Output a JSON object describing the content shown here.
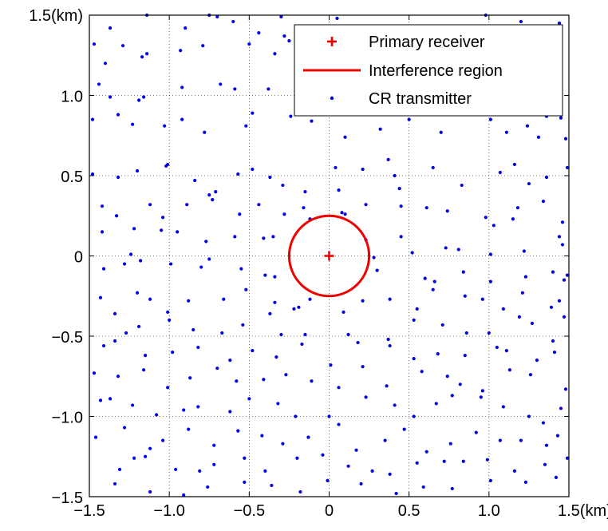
{
  "chart_data": {
    "type": "scatter",
    "xlim": [
      -1.5,
      1.5
    ],
    "ylim": [
      -1.5,
      1.5
    ],
    "grid": true,
    "legend_position": "top-right",
    "x_ticks": [
      {
        "value": -1.5,
        "label": "−1.5"
      },
      {
        "value": -1.0,
        "label": "−1.0"
      },
      {
        "value": -0.5,
        "label": "−0.5"
      },
      {
        "value": 0,
        "label": "0"
      },
      {
        "value": 0.5,
        "label": "0.5"
      },
      {
        "value": 1.0,
        "label": "1.0"
      },
      {
        "value": 1.5,
        "label": "1.5(km)"
      }
    ],
    "y_ticks": [
      {
        "value": -1.5,
        "label": "−1.5"
      },
      {
        "value": -1.0,
        "label": "−1.0"
      },
      {
        "value": -0.5,
        "label": "−0.5"
      },
      {
        "value": 0,
        "label": "0"
      },
      {
        "value": 0.5,
        "label": "0.5"
      },
      {
        "value": 1.0,
        "label": "1.0"
      },
      {
        "value": 1.5,
        "label": "1.5(km)"
      }
    ],
    "legend": {
      "items": [
        {
          "label": "Primary receiver",
          "marker": "plus",
          "color": "#ee0000"
        },
        {
          "label": "Interference region",
          "marker": "line",
          "color": "#ee0000"
        },
        {
          "label": "CR transmitter",
          "marker": "dot",
          "color": "#0000ee"
        }
      ]
    },
    "primary_receiver": {
      "x": 0,
      "y": 0,
      "color": "#ee0000"
    },
    "interference_region": {
      "center_x": 0,
      "center_y": 0,
      "radius": 0.25,
      "color": "#ee0000"
    },
    "cr_transmitters": {
      "color": "#0000ee",
      "points": [
        [
          -1.37,
          1.42
        ],
        [
          -1.14,
          1.5
        ],
        [
          -0.9,
          1.42
        ],
        [
          -0.75,
          1.5
        ],
        [
          -0.7,
          1.49
        ],
        [
          -0.6,
          1.46
        ],
        [
          -0.44,
          1.39
        ],
        [
          -0.3,
          1.49
        ],
        [
          -0.28,
          1.37
        ],
        [
          -0.25,
          1.34
        ],
        [
          0.05,
          1.48
        ],
        [
          0.3,
          1.37
        ],
        [
          0.49,
          1.43
        ],
        [
          0.61,
          1.36
        ],
        [
          0.82,
          1.37
        ],
        [
          0.98,
          1.5
        ],
        [
          1.2,
          1.46
        ],
        [
          1.44,
          1.45
        ],
        [
          -1.47,
          1.32
        ],
        [
          -1.4,
          1.2
        ],
        [
          -1.29,
          1.31
        ],
        [
          -1.14,
          1.26
        ],
        [
          -1.17,
          1.24
        ],
        [
          -0.93,
          1.28
        ],
        [
          -0.79,
          1.31
        ],
        [
          -0.5,
          1.32
        ],
        [
          -0.34,
          1.26
        ],
        [
          0.26,
          1.23
        ],
        [
          0.46,
          1.2
        ],
        [
          0.78,
          1.22
        ],
        [
          1.05,
          1.32
        ],
        [
          1.12,
          1.27
        ],
        [
          1.25,
          1.19
        ],
        [
          -1.44,
          1.07
        ],
        [
          -1.37,
          0.99
        ],
        [
          -1.19,
          0.97
        ],
        [
          -1.16,
          0.99
        ],
        [
          -0.92,
          1.05
        ],
        [
          -0.68,
          1.07
        ],
        [
          -0.59,
          1.04
        ],
        [
          -0.38,
          1.04
        ],
        [
          -0.06,
          0.96
        ],
        [
          0.39,
          1.03
        ],
        [
          0.95,
          1.09
        ],
        [
          1.25,
          1.07
        ],
        [
          1.4,
          1.05
        ],
        [
          1.42,
          1.12
        ],
        [
          -1.48,
          0.85
        ],
        [
          -1.32,
          0.88
        ],
        [
          -1.23,
          0.82
        ],
        [
          -1.03,
          0.81
        ],
        [
          -0.92,
          0.85
        ],
        [
          -0.78,
          0.77
        ],
        [
          -0.52,
          0.81
        ],
        [
          -0.48,
          0.89
        ],
        [
          -0.24,
          0.87
        ],
        [
          -0.11,
          0.84
        ],
        [
          0.1,
          0.74
        ],
        [
          0.32,
          0.79
        ],
        [
          0.5,
          0.85
        ],
        [
          0.7,
          0.77
        ],
        [
          0.87,
          0.93
        ],
        [
          1.01,
          0.85
        ],
        [
          1.11,
          0.77
        ],
        [
          1.24,
          0.81
        ],
        [
          1.31,
          0.74
        ],
        [
          1.36,
          0.87
        ],
        [
          1.45,
          0.86
        ],
        [
          1.48,
          0.73
        ],
        [
          -1.48,
          0.51
        ],
        [
          -1.32,
          0.49
        ],
        [
          -1.2,
          0.53
        ],
        [
          -1.02,
          0.56
        ],
        [
          -1.01,
          0.57
        ],
        [
          -0.84,
          0.47
        ],
        [
          -0.71,
          0.4
        ],
        [
          -0.57,
          0.51
        ],
        [
          -0.48,
          0.54
        ],
        [
          -0.37,
          0.49
        ],
        [
          -0.29,
          0.44
        ],
        [
          -0.15,
          0.4
        ],
        [
          0.04,
          0.55
        ],
        [
          0.06,
          0.41
        ],
        [
          0.21,
          0.54
        ],
        [
          0.37,
          0.6
        ],
        [
          0.41,
          0.5
        ],
        [
          0.44,
          0.42
        ],
        [
          0.65,
          0.55
        ],
        [
          0.83,
          0.44
        ],
        [
          1.07,
          0.52
        ],
        [
          1.16,
          0.57
        ],
        [
          1.25,
          0.45
        ],
        [
          1.36,
          0.49
        ],
        [
          1.49,
          0.55
        ],
        [
          -1.42,
          0.31
        ],
        [
          -1.33,
          0.25
        ],
        [
          -1.12,
          0.32
        ],
        [
          -1.04,
          0.24
        ],
        [
          -0.89,
          0.32
        ],
        [
          -0.75,
          0.38
        ],
        [
          -0.73,
          0.35
        ],
        [
          -0.56,
          0.26
        ],
        [
          -0.44,
          0.32
        ],
        [
          -0.28,
          0.26
        ],
        [
          -0.16,
          0.3
        ],
        [
          -0.12,
          0.23
        ],
        [
          0.08,
          0.27
        ],
        [
          0.1,
          0.26
        ],
        [
          0.23,
          0.32
        ],
        [
          0.45,
          0.31
        ],
        [
          0.61,
          0.3
        ],
        [
          0.74,
          0.28
        ],
        [
          0.98,
          0.24
        ],
        [
          1.03,
          0.19
        ],
        [
          1.15,
          0.23
        ],
        [
          1.18,
          0.3
        ],
        [
          1.34,
          0.34
        ],
        [
          1.46,
          0.21
        ],
        [
          -1.42,
          0.15
        ],
        [
          -1.22,
          0.17
        ],
        [
          -1.05,
          0.16
        ],
        [
          -0.95,
          0.15
        ],
        [
          -0.77,
          0.09
        ],
        [
          -0.59,
          0.12
        ],
        [
          -0.41,
          0.11
        ],
        [
          -0.35,
          0.12
        ],
        [
          0.23,
          0.1
        ],
        [
          0.45,
          0.12
        ],
        [
          0.52,
          0.02
        ],
        [
          0.73,
          0.05
        ],
        [
          0.81,
          0.04
        ],
        [
          1.01,
          0.01
        ],
        [
          1.22,
          0.03
        ],
        [
          1.44,
          0.12
        ],
        [
          1.46,
          0.07
        ],
        [
          -1.41,
          -0.08
        ],
        [
          -1.28,
          -0.05
        ],
        [
          -1.24,
          0.01
        ],
        [
          -1.18,
          -0.03
        ],
        [
          -0.99,
          -0.05
        ],
        [
          -0.8,
          -0.07
        ],
        [
          -0.75,
          -0.02
        ],
        [
          -0.55,
          -0.08
        ],
        [
          -0.4,
          -0.12
        ],
        [
          -0.34,
          -0.13
        ],
        [
          0.28,
          -0.01
        ],
        [
          0.3,
          -0.09
        ],
        [
          0.6,
          -0.14
        ],
        [
          0.66,
          -0.16
        ],
        [
          0.84,
          -0.1
        ],
        [
          1.01,
          -0.16
        ],
        [
          1.23,
          -0.13
        ],
        [
          1.4,
          -0.1
        ],
        [
          1.49,
          -0.12
        ],
        [
          1.47,
          -0.15
        ],
        [
          -1.43,
          -0.26
        ],
        [
          -1.2,
          -0.23
        ],
        [
          -1.12,
          -0.27
        ],
        [
          -1.01,
          -0.35
        ],
        [
          -0.88,
          -0.28
        ],
        [
          -0.66,
          -0.27
        ],
        [
          -0.52,
          -0.21
        ],
        [
          -0.34,
          -0.29
        ],
        [
          -0.22,
          -0.33
        ],
        [
          -0.19,
          -0.32
        ],
        [
          -0.12,
          -0.27
        ],
        [
          0.09,
          -0.35
        ],
        [
          0.21,
          -0.28
        ],
        [
          0.38,
          -0.27
        ],
        [
          0.55,
          -0.33
        ],
        [
          0.65,
          -0.21
        ],
        [
          0.85,
          -0.25
        ],
        [
          0.96,
          -0.27
        ],
        [
          1.09,
          -0.33
        ],
        [
          1.21,
          -0.23
        ],
        [
          1.39,
          -0.32
        ],
        [
          1.44,
          -0.28
        ],
        [
          -1.34,
          -0.36
        ],
        [
          -1.27,
          -0.48
        ],
        [
          -1.19,
          -0.44
        ],
        [
          -1.0,
          -0.4
        ],
        [
          -0.85,
          -0.46
        ],
        [
          -0.67,
          -0.48
        ],
        [
          -0.54,
          -0.43
        ],
        [
          -0.37,
          -0.36
        ],
        [
          -0.3,
          -0.49
        ],
        [
          -0.15,
          -0.49
        ],
        [
          0.12,
          -0.49
        ],
        [
          0.37,
          -0.52
        ],
        [
          0.53,
          -0.4
        ],
        [
          0.71,
          -0.43
        ],
        [
          0.86,
          -0.48
        ],
        [
          1.0,
          -0.48
        ],
        [
          1.19,
          -0.38
        ],
        [
          1.27,
          -0.42
        ],
        [
          1.4,
          -0.53
        ],
        [
          1.47,
          -0.38
        ],
        [
          -1.41,
          -0.56
        ],
        [
          -1.34,
          -0.53
        ],
        [
          -1.15,
          -0.62
        ],
        [
          -0.98,
          -0.6
        ],
        [
          -0.82,
          -0.57
        ],
        [
          -0.62,
          -0.65
        ],
        [
          -0.48,
          -0.59
        ],
        [
          -0.33,
          -0.63
        ],
        [
          -0.17,
          -0.55
        ],
        [
          0.01,
          -0.68
        ],
        [
          0.18,
          -0.54
        ],
        [
          0.38,
          -0.56
        ],
        [
          0.53,
          -0.64
        ],
        [
          0.68,
          -0.61
        ],
        [
          0.85,
          -0.62
        ],
        [
          1.05,
          -0.57
        ],
        [
          1.11,
          -0.59
        ],
        [
          1.3,
          -0.65
        ],
        [
          1.41,
          -0.6
        ],
        [
          -1.47,
          -0.73
        ],
        [
          -1.32,
          -0.75
        ],
        [
          -1.16,
          -0.71
        ],
        [
          -1.01,
          -0.82
        ],
        [
          -0.87,
          -0.76
        ],
        [
          -0.7,
          -0.7
        ],
        [
          -0.58,
          -0.78
        ],
        [
          -0.41,
          -0.77
        ],
        [
          -0.27,
          -0.74
        ],
        [
          -0.11,
          -0.78
        ],
        [
          0.06,
          -0.82
        ],
        [
          0.21,
          -0.69
        ],
        [
          0.36,
          -0.81
        ],
        [
          0.58,
          -0.72
        ],
        [
          0.74,
          -0.75
        ],
        [
          0.82,
          -0.8
        ],
        [
          0.96,
          -0.84
        ],
        [
          1.13,
          -0.71
        ],
        [
          1.26,
          -0.74
        ],
        [
          1.48,
          -0.83
        ],
        [
          -1.43,
          -0.9
        ],
        [
          -1.37,
          -0.89
        ],
        [
          -1.23,
          -0.93
        ],
        [
          -1.08,
          -0.99
        ],
        [
          -0.91,
          -0.96
        ],
        [
          -0.82,
          -0.94
        ],
        [
          -0.62,
          -0.97
        ],
        [
          -0.5,
          -0.89
        ],
        [
          -0.32,
          -0.92
        ],
        [
          -0.21,
          -1.0
        ],
        [
          0.0,
          -1.0
        ],
        [
          0.23,
          -0.88
        ],
        [
          0.41,
          -0.93
        ],
        [
          0.53,
          -1.0
        ],
        [
          0.67,
          -0.92
        ],
        [
          0.77,
          -0.87
        ],
        [
          0.95,
          -0.88
        ],
        [
          1.09,
          -0.94
        ],
        [
          1.25,
          -1.0
        ],
        [
          1.34,
          -1.04
        ],
        [
          1.45,
          -0.95
        ],
        [
          -1.46,
          -1.13
        ],
        [
          -1.28,
          -1.07
        ],
        [
          -1.12,
          -1.2
        ],
        [
          -1.04,
          -1.15
        ],
        [
          -0.88,
          -1.08
        ],
        [
          -0.72,
          -1.18
        ],
        [
          -0.57,
          -1.09
        ],
        [
          -0.42,
          -1.12
        ],
        [
          -0.29,
          -1.17
        ],
        [
          -0.13,
          -1.13
        ],
        [
          0.06,
          -1.05
        ],
        [
          0.17,
          -1.21
        ],
        [
          0.35,
          -1.15
        ],
        [
          0.47,
          -1.08
        ],
        [
          0.61,
          -1.22
        ],
        [
          0.76,
          -1.17
        ],
        [
          0.92,
          -1.1
        ],
        [
          1.07,
          -1.15
        ],
        [
          1.2,
          -1.15
        ],
        [
          1.36,
          -1.18
        ],
        [
          1.43,
          -1.12
        ],
        [
          -1.31,
          -1.33
        ],
        [
          -1.22,
          -1.26
        ],
        [
          -1.15,
          -1.25
        ],
        [
          -0.96,
          -1.33
        ],
        [
          -0.81,
          -1.34
        ],
        [
          -0.72,
          -1.3
        ],
        [
          -0.53,
          -1.26
        ],
        [
          -0.4,
          -1.34
        ],
        [
          -0.2,
          -1.26
        ],
        [
          -0.04,
          -1.24
        ],
        [
          0.12,
          -1.31
        ],
        [
          0.27,
          -1.34
        ],
        [
          0.38,
          -1.36
        ],
        [
          0.55,
          -1.29
        ],
        [
          0.72,
          -1.28
        ],
        [
          0.84,
          -1.28
        ],
        [
          0.99,
          -1.27
        ],
        [
          1.16,
          -1.34
        ],
        [
          1.35,
          -1.3
        ],
        [
          1.49,
          -1.26
        ],
        [
          -1.34,
          -1.42
        ],
        [
          -1.12,
          -1.47
        ],
        [
          -0.91,
          -1.49
        ],
        [
          -0.76,
          -1.44
        ],
        [
          -0.53,
          -1.41
        ],
        [
          -0.36,
          -1.43
        ],
        [
          -0.18,
          -1.47
        ],
        [
          -0.01,
          -1.4
        ],
        [
          0.2,
          -1.42
        ],
        [
          0.42,
          -1.48
        ],
        [
          0.59,
          -1.44
        ],
        [
          0.77,
          -1.45
        ],
        [
          1.01,
          -1.4
        ],
        [
          1.23,
          -1.41
        ],
        [
          1.42,
          -1.38
        ]
      ]
    }
  }
}
